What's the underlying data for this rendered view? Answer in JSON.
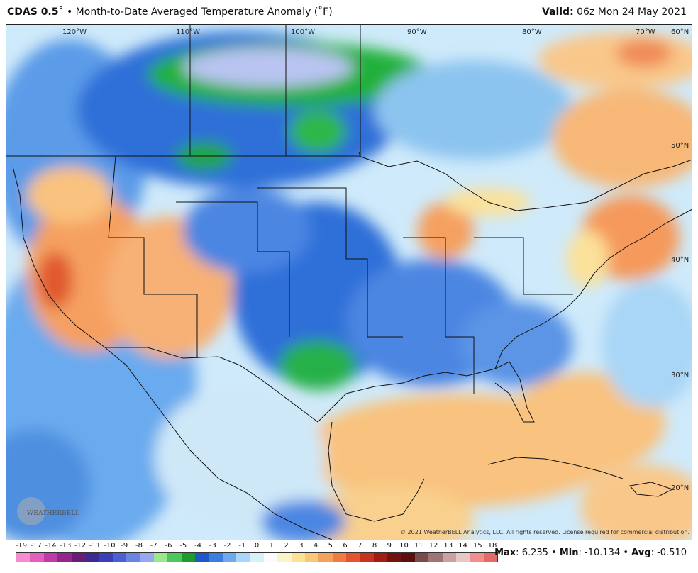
{
  "header": {
    "model": "CDAS 0.5˚",
    "separator": "•",
    "title": "Month-to-Date Averaged Temperature Anomaly (˚F)",
    "valid_label": "Valid:",
    "valid_time": "06z Mon 24 May 2021"
  },
  "map": {
    "longitudes": [
      "120°W",
      "110°W",
      "100°W",
      "90°W",
      "80°W",
      "70°W",
      "60°N"
    ],
    "latitudes": [
      "50°N",
      "40°N",
      "30°N",
      "20°N"
    ]
  },
  "legend": {
    "ticks": [
      "-19",
      "-17",
      "-14",
      "-13",
      "-12",
      "-11",
      "-10",
      "-9",
      "-8",
      "-7",
      "-6",
      "-5",
      "-4",
      "-3",
      "-2",
      "-1",
      "0",
      "1",
      "2",
      "3",
      "4",
      "5",
      "6",
      "7",
      "8",
      "9",
      "10",
      "11",
      "12",
      "13",
      "14",
      "15",
      "18"
    ],
    "colors": [
      "#f58ccf",
      "#e35fbf",
      "#c13aa8",
      "#96268f",
      "#6a1c7a",
      "#3c2a91",
      "#3a3fb8",
      "#4a5fd0",
      "#6b84e0",
      "#97a8ef",
      "#9ce68f",
      "#4cc85a",
      "#1c9c2a",
      "#1f58c8",
      "#3c7ee0",
      "#6ea9ee",
      "#a9d6f6",
      "#d7f0fa",
      "#fbfbfb",
      "#fbf3c9",
      "#fbe19a",
      "#f9c77a",
      "#f5a25c",
      "#ef7c42",
      "#e35430",
      "#c8321e",
      "#a01d14",
      "#741210",
      "#5a0e0e",
      "#7a4b4b",
      "#a07474",
      "#c9a2a2",
      "#e6c8c8"
    ],
    "colors_tail": [
      "#ef8f8f",
      "#e56a6a"
    ]
  },
  "stats": {
    "max_label": "Max",
    "max_value": "6.235",
    "min_label": "Min",
    "min_value": "-10.134",
    "avg_label": "Avg",
    "avg_value": "-0.510"
  },
  "copyright": "© 2021 WeatherBELL Analytics, LLC. All rights reserved. License required for commercial distribution.",
  "logo_text": "WEATHERBELL"
}
